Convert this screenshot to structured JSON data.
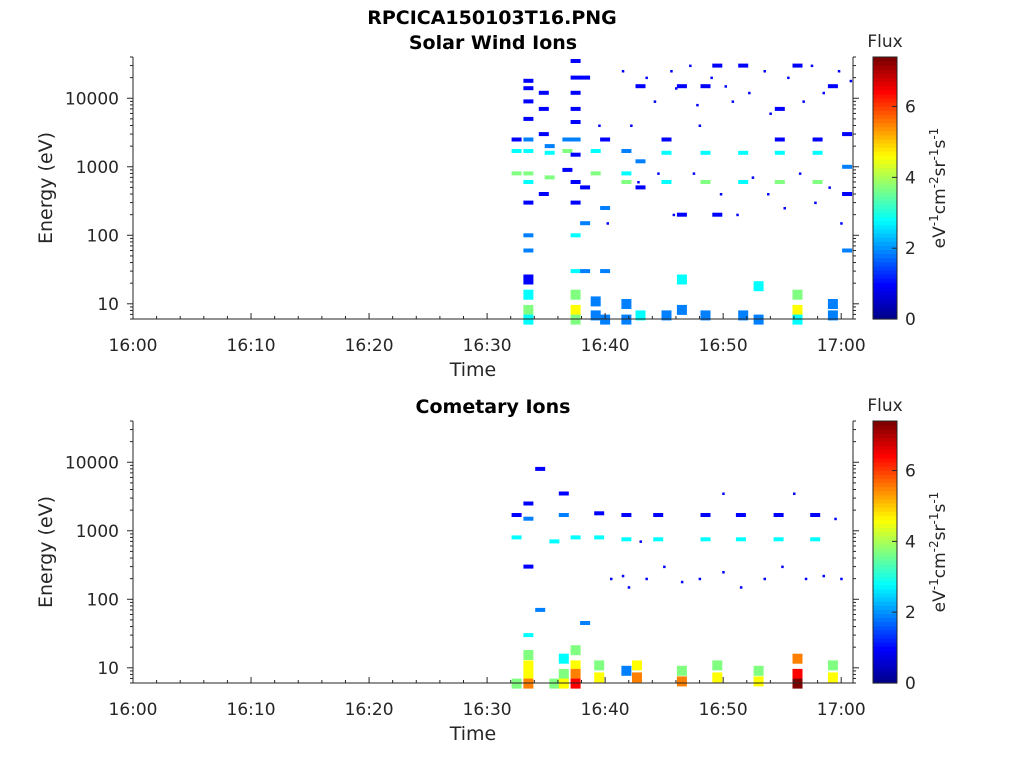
{
  "figure": {
    "title": "RPCICA150103T16.PNG"
  },
  "colormap": [
    "#00008f",
    "#0000ff",
    "#0080ff",
    "#00ffff",
    "#80ff80",
    "#ffff00",
    "#ff8000",
    "#ff0000",
    "#800000"
  ],
  "chart_data": [
    {
      "type": "heatmap",
      "title": "Solar Wind Ions",
      "xlabel": "Time",
      "ylabel": "Energy (eV)",
      "x_ticks": [
        "16:00",
        "16:10",
        "16:20",
        "16:30",
        "16:40",
        "16:50",
        "17:00"
      ],
      "y_ticks": [
        "10",
        "100",
        "1000",
        "10000"
      ],
      "y_scale": "log",
      "ylim": [
        6,
        40000
      ],
      "xlim_min": [
        0,
        61
      ],
      "grid": false,
      "colorbar": {
        "label": "eV-1cm-2sr-1s-1",
        "title": "Flux",
        "ticks": [
          "0",
          "2",
          "4",
          "6"
        ],
        "range": [
          0,
          7.4
        ]
      },
      "cells": [
        [
          33.5,
          18000,
          1
        ],
        [
          33.5,
          14000,
          1
        ],
        [
          33.5,
          9000,
          1
        ],
        [
          33.5,
          5000,
          1
        ],
        [
          33.5,
          2500,
          2
        ],
        [
          33.5,
          1700,
          3
        ],
        [
          33.5,
          800,
          4
        ],
        [
          33.5,
          600,
          3
        ],
        [
          33.5,
          300,
          1
        ],
        [
          33.5,
          100,
          2
        ],
        [
          33.5,
          60,
          2
        ],
        [
          33.5,
          25,
          1
        ],
        [
          33.5,
          15,
          3
        ],
        [
          33.5,
          9,
          4
        ],
        [
          33.5,
          6.5,
          3
        ],
        [
          32.5,
          1700,
          3
        ],
        [
          32.5,
          800,
          4
        ],
        [
          32.5,
          2500,
          1
        ],
        [
          34.8,
          12000,
          1
        ],
        [
          34.8,
          7000,
          1
        ],
        [
          34.8,
          3000,
          1
        ],
        [
          34.8,
          400,
          1
        ],
        [
          35.3,
          1600,
          3
        ],
        [
          35.3,
          700,
          4
        ],
        [
          35.3,
          2000,
          2
        ],
        [
          36.8,
          1700,
          4
        ],
        [
          36.8,
          2500,
          2
        ],
        [
          36.8,
          900,
          1
        ],
        [
          37.5,
          35000,
          1
        ],
        [
          37.5,
          20000,
          1
        ],
        [
          37.5,
          12000,
          1
        ],
        [
          37.5,
          7000,
          1
        ],
        [
          37.5,
          4500,
          1
        ],
        [
          37.5,
          2500,
          2
        ],
        [
          37.5,
          1500,
          1
        ],
        [
          37.5,
          600,
          1
        ],
        [
          37.5,
          300,
          1
        ],
        [
          37.5,
          100,
          3
        ],
        [
          37.5,
          30,
          3
        ],
        [
          37.5,
          15,
          4
        ],
        [
          37.5,
          9,
          5
        ],
        [
          37.5,
          6.5,
          4
        ],
        [
          38.3,
          500,
          1
        ],
        [
          38.3,
          150,
          2
        ],
        [
          38.3,
          30,
          2
        ],
        [
          38.3,
          20000,
          1
        ],
        [
          39.2,
          800,
          4
        ],
        [
          39.2,
          1700,
          3
        ],
        [
          39.2,
          7.5,
          2
        ],
        [
          39.2,
          12,
          2
        ],
        [
          40.0,
          2500,
          1
        ],
        [
          40.0,
          30,
          2
        ],
        [
          40.0,
          250,
          2
        ],
        [
          40.0,
          6.5,
          2
        ],
        [
          41.8,
          600,
          4
        ],
        [
          41.8,
          800,
          3
        ],
        [
          41.8,
          1700,
          2
        ],
        [
          41.8,
          6.5,
          2
        ],
        [
          41.8,
          11,
          2
        ],
        [
          43.0,
          1200,
          2
        ],
        [
          43.0,
          500,
          1
        ],
        [
          43.0,
          15000,
          1
        ],
        [
          43.0,
          7.5,
          3
        ],
        [
          45.2,
          600,
          3
        ],
        [
          45.2,
          1600,
          3
        ],
        [
          45.2,
          2500,
          1
        ],
        [
          45.2,
          7.5,
          2
        ],
        [
          46.5,
          15000,
          1
        ],
        [
          46.5,
          200,
          1
        ],
        [
          46.5,
          25,
          3
        ],
        [
          46.5,
          9,
          2
        ],
        [
          48.5,
          600,
          4
        ],
        [
          48.5,
          1600,
          3
        ],
        [
          48.5,
          7.5,
          2
        ],
        [
          48.5,
          15000,
          1
        ],
        [
          49.5,
          30000,
          1
        ],
        [
          49.5,
          200,
          1
        ],
        [
          51.7,
          600,
          3
        ],
        [
          51.7,
          1600,
          3
        ],
        [
          51.7,
          7.5,
          2
        ],
        [
          51.7,
          30000,
          1
        ],
        [
          53.0,
          20,
          3
        ],
        [
          53.0,
          6.5,
          2
        ],
        [
          54.8,
          600,
          4
        ],
        [
          54.8,
          1600,
          3
        ],
        [
          54.8,
          2500,
          1
        ],
        [
          54.8,
          7000,
          1
        ],
        [
          56.3,
          15,
          4
        ],
        [
          56.3,
          9,
          5
        ],
        [
          56.3,
          6.5,
          3
        ],
        [
          56.3,
          30000,
          1
        ],
        [
          58.0,
          600,
          4
        ],
        [
          58.0,
          1600,
          3
        ],
        [
          58.0,
          2500,
          1
        ],
        [
          59.3,
          11,
          2
        ],
        [
          59.3,
          7.5,
          2
        ],
        [
          59.3,
          15000,
          1
        ],
        [
          60.5,
          1000,
          2
        ],
        [
          60.5,
          400,
          1
        ],
        [
          60.5,
          3000,
          1
        ],
        [
          60.5,
          60,
          2
        ]
      ],
      "scatter_points": [
        [
          41.5,
          25000
        ],
        [
          42.2,
          4000
        ],
        [
          43.5,
          20000
        ],
        [
          44.2,
          9000
        ],
        [
          45.6,
          25000
        ],
        [
          46.0,
          14000
        ],
        [
          47.2,
          30000
        ],
        [
          47.8,
          8000
        ],
        [
          48.0,
          4000
        ],
        [
          49.0,
          20000
        ],
        [
          50.2,
          15000
        ],
        [
          50.8,
          9000
        ],
        [
          52.2,
          12000
        ],
        [
          53.5,
          25000
        ],
        [
          54.0,
          6000
        ],
        [
          55.5,
          20000
        ],
        [
          56.8,
          9000
        ],
        [
          57.5,
          30000
        ],
        [
          58.5,
          12000
        ],
        [
          59.8,
          25000
        ],
        [
          60.8,
          18000
        ],
        [
          39.5,
          4000
        ],
        [
          40.2,
          150
        ],
        [
          42.8,
          600
        ],
        [
          44.5,
          800
        ],
        [
          45.8,
          200
        ],
        [
          47.5,
          800
        ],
        [
          49.8,
          400
        ],
        [
          51.2,
          200
        ],
        [
          52.5,
          700
        ],
        [
          53.8,
          400
        ],
        [
          55.2,
          250
        ],
        [
          56.5,
          800
        ],
        [
          57.8,
          300
        ],
        [
          59.0,
          500
        ],
        [
          60.0,
          150
        ]
      ]
    },
    {
      "type": "heatmap",
      "title": "Cometary Ions",
      "xlabel": "Time",
      "ylabel": "Energy (eV)",
      "x_ticks": [
        "16:00",
        "16:10",
        "16:20",
        "16:30",
        "16:40",
        "16:50",
        "17:00"
      ],
      "y_ticks": [
        "10",
        "100",
        "1000",
        "10000"
      ],
      "y_scale": "log",
      "ylim": [
        6,
        40000
      ],
      "xlim_min": [
        0,
        61
      ],
      "grid": false,
      "colorbar": {
        "label": "eV-1cm-2sr-1s-1",
        "title": "Flux",
        "ticks": [
          "0",
          "2",
          "4",
          "6"
        ],
        "range": [
          0,
          7.4
        ]
      },
      "cells": [
        [
          32.5,
          1700,
          1
        ],
        [
          32.5,
          800,
          3
        ],
        [
          32.5,
          6.5,
          4
        ],
        [
          33.5,
          2500,
          1
        ],
        [
          33.5,
          1500,
          2
        ],
        [
          33.5,
          300,
          1
        ],
        [
          33.5,
          30,
          3
        ],
        [
          33.5,
          17,
          4
        ],
        [
          33.5,
          12,
          5
        ],
        [
          33.5,
          9,
          5
        ],
        [
          33.5,
          6.5,
          6
        ],
        [
          34.5,
          8000,
          1
        ],
        [
          34.5,
          70,
          2
        ],
        [
          35.7,
          700,
          3
        ],
        [
          35.7,
          6.5,
          4
        ],
        [
          36.5,
          3500,
          1
        ],
        [
          36.5,
          1700,
          2
        ],
        [
          36.5,
          15,
          3
        ],
        [
          36.5,
          9,
          4
        ],
        [
          36.5,
          6.5,
          5
        ],
        [
          37.5,
          800,
          3
        ],
        [
          37.5,
          20,
          4
        ],
        [
          37.5,
          12,
          5
        ],
        [
          37.5,
          9,
          6
        ],
        [
          37.5,
          6.5,
          7
        ],
        [
          38.3,
          45,
          2
        ],
        [
          39.5,
          1800,
          1
        ],
        [
          39.5,
          800,
          3
        ],
        [
          39.5,
          12,
          4
        ],
        [
          39.5,
          8,
          5
        ],
        [
          41.8,
          1700,
          1
        ],
        [
          41.8,
          750,
          3
        ],
        [
          41.8,
          10,
          2
        ],
        [
          42.7,
          12,
          5
        ],
        [
          42.7,
          8,
          6
        ],
        [
          44.5,
          1700,
          1
        ],
        [
          44.5,
          750,
          3
        ],
        [
          46.5,
          10,
          4
        ],
        [
          46.5,
          7,
          6
        ],
        [
          48.5,
          1700,
          1
        ],
        [
          48.5,
          750,
          3
        ],
        [
          49.5,
          12,
          4
        ],
        [
          49.5,
          8,
          5
        ],
        [
          51.5,
          1700,
          1
        ],
        [
          51.5,
          750,
          3
        ],
        [
          53.0,
          10,
          4
        ],
        [
          53.0,
          7,
          5
        ],
        [
          54.7,
          1700,
          1
        ],
        [
          54.7,
          750,
          3
        ],
        [
          56.3,
          15,
          6
        ],
        [
          56.3,
          9,
          7
        ],
        [
          56.3,
          6.5,
          8
        ],
        [
          57.8,
          1700,
          1
        ],
        [
          57.8,
          750,
          3
        ],
        [
          59.3,
          12,
          4
        ],
        [
          59.3,
          8,
          5
        ]
      ],
      "scatter_points": [
        [
          40.5,
          200
        ],
        [
          41.5,
          220
        ],
        [
          42.0,
          150
        ],
        [
          43.5,
          200
        ],
        [
          45.0,
          300
        ],
        [
          46.5,
          180
        ],
        [
          48.0,
          200
        ],
        [
          50.0,
          250
        ],
        [
          51.5,
          150
        ],
        [
          53.5,
          200
        ],
        [
          55.0,
          300
        ],
        [
          57.0,
          200
        ],
        [
          58.5,
          220
        ],
        [
          60.0,
          200
        ],
        [
          43.0,
          700
        ],
        [
          50.0,
          3500
        ],
        [
          56.0,
          3500
        ],
        [
          59.5,
          1500
        ]
      ]
    }
  ]
}
